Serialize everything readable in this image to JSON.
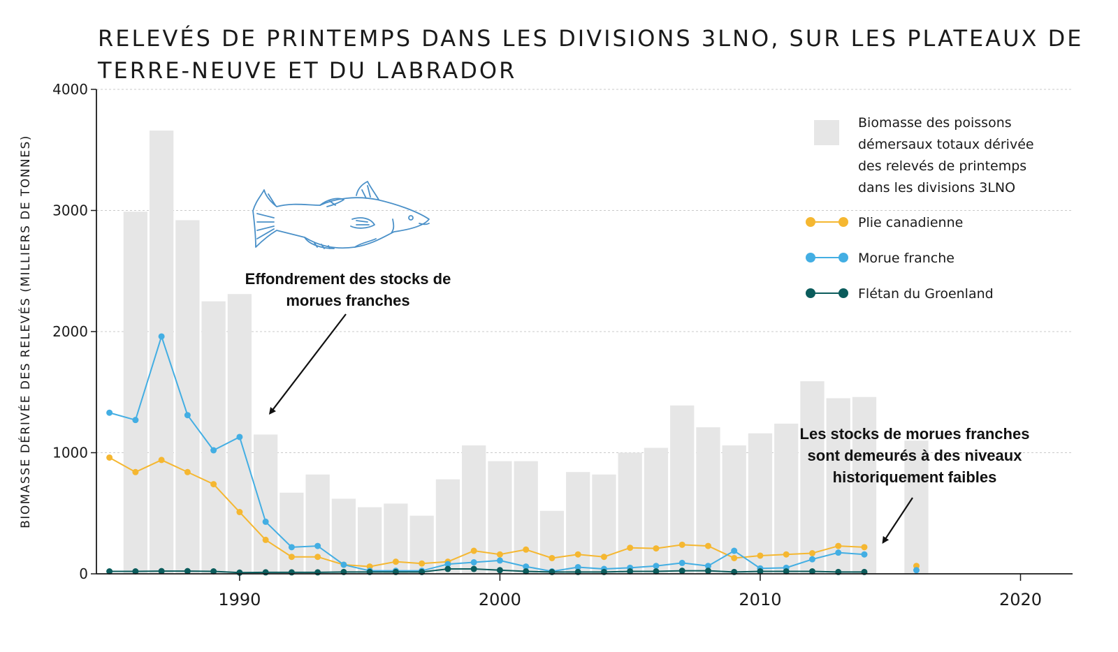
{
  "chart_data": {
    "type": "bar",
    "title": "RELEVÉS DE PRINTEMPS DANS LES DIVISIONS 3LNO, SUR LES PLATEAUX DE TERRE-NEUVE ET DU LABRADOR",
    "xlabel": "",
    "ylabel": "BIOMASSE DÉRIVÉE DES RELEVÉS (MILLIERS DE TONNES)",
    "xlim": [
      1984.5,
      2022
    ],
    "ylim": [
      0,
      4000
    ],
    "x_ticks": [
      1990,
      2000,
      2010,
      2020
    ],
    "y_ticks": [
      0,
      1000,
      2000,
      3000,
      4000
    ],
    "grid": "horizontal-dashed",
    "bars": {
      "name": "Biomasse des poissons démersaux totaux dérivée des relevés de printemps dans les divisions 3LNO",
      "color": "#e6e6e6",
      "x": [
        1986,
        1987,
        1988,
        1989,
        1990,
        1991,
        1992,
        1993,
        1994,
        1995,
        1996,
        1997,
        1998,
        1999,
        2000,
        2001,
        2002,
        2003,
        2004,
        2005,
        2006,
        2007,
        2008,
        2009,
        2010,
        2011,
        2012,
        2013,
        2014,
        2016
      ],
      "values": [
        2990,
        3660,
        2920,
        2250,
        2310,
        1150,
        670,
        820,
        620,
        550,
        580,
        480,
        780,
        1060,
        930,
        930,
        520,
        840,
        820,
        1000,
        1040,
        1390,
        1210,
        1060,
        1160,
        1240,
        1590,
        1450,
        1460,
        1100
      ]
    },
    "series": [
      {
        "name": "Plie canadienne",
        "color": "#f5b731",
        "segments": [
          {
            "x": [
              1985,
              1986,
              1987,
              1988,
              1989,
              1990,
              1991,
              1992,
              1993,
              1994,
              1995,
              1996,
              1997,
              1998,
              1999,
              2000,
              2001,
              2002,
              2003,
              2004,
              2005,
              2006,
              2007,
              2008,
              2009,
              2010,
              2011,
              2012,
              2013,
              2014
            ],
            "values": [
              960,
              840,
              940,
              840,
              740,
              510,
              280,
              140,
              140,
              75,
              60,
              100,
              85,
              100,
              190,
              160,
              200,
              130,
              160,
              140,
              215,
              210,
              240,
              230,
              130,
              150,
              160,
              170,
              230,
              220
            ]
          },
          {
            "x": [
              2016
            ],
            "values": [
              65
            ]
          }
        ]
      },
      {
        "name": "Morue franche",
        "color": "#43aee3",
        "segments": [
          {
            "x": [
              1985,
              1986,
              1987,
              1988,
              1989,
              1990,
              1991,
              1992,
              1993,
              1994,
              1995,
              1996,
              1997,
              1998,
              1999,
              2000,
              2001,
              2002,
              2003,
              2004,
              2005,
              2006,
              2007,
              2008,
              2009,
              2010,
              2011,
              2012,
              2013,
              2014
            ],
            "values": [
              1330,
              1270,
              1960,
              1310,
              1020,
              1130,
              430,
              220,
              230,
              75,
              25,
              25,
              25,
              80,
              95,
              110,
              60,
              20,
              55,
              40,
              50,
              65,
              90,
              65,
              190,
              45,
              50,
              120,
              175,
              160
            ]
          },
          {
            "x": [
              2016
            ],
            "values": [
              30
            ]
          }
        ]
      },
      {
        "name": "Flétan du Groenland",
        "color": "#0b5c5c",
        "segments": [
          {
            "x": [
              1985,
              1986,
              1987,
              1988,
              1989,
              1990,
              1991,
              1992,
              1993,
              1994,
              1995,
              1996,
              1997,
              1998,
              1999,
              2000,
              2001,
              2002,
              2003,
              2004,
              2005,
              2006,
              2007,
              2008,
              2009,
              2010,
              2011,
              2012,
              2013,
              2014
            ],
            "values": [
              20,
              20,
              22,
              22,
              20,
              10,
              12,
              12,
              12,
              15,
              15,
              15,
              15,
              40,
              40,
              30,
              20,
              15,
              15,
              15,
              20,
              20,
              25,
              25,
              15,
              20,
              20,
              20,
              15,
              15
            ]
          }
        ]
      }
    ],
    "legend": {
      "position": "top-right",
      "bar_label_lines": [
        "Biomasse des poissons",
        "démersaux totaux dérivée",
        "des relevés de printemps",
        "dans les divisions 3LNO"
      ]
    },
    "annotations": [
      {
        "lines": [
          "Effondrement des stocks de",
          "morues franches"
        ],
        "points_to": {
          "x": 1991,
          "y": 1300
        }
      },
      {
        "lines": [
          "Les stocks de morues franches",
          "sont demeurés à des niveaux",
          "historiquement faibles"
        ],
        "points_to": {
          "x": 2014.5,
          "y": 200
        }
      }
    ]
  }
}
